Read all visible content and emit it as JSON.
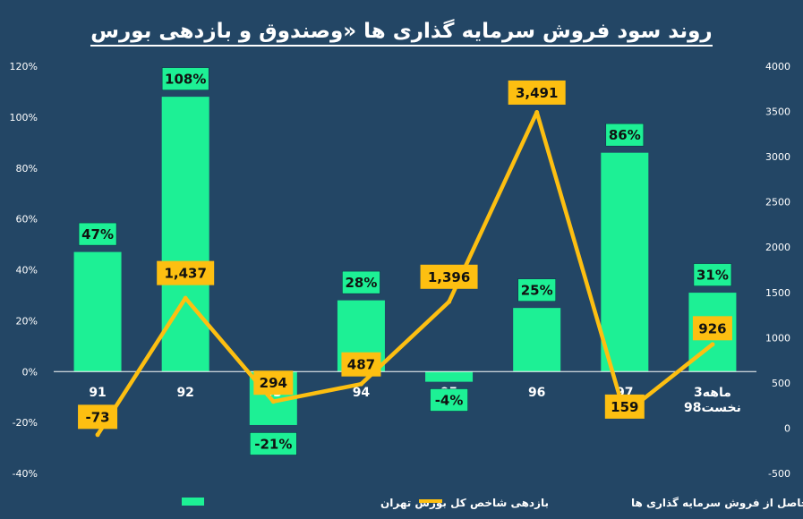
{
  "colors": {
    "background": "#234665",
    "bar": "#1DF095",
    "line": "#FDBF11",
    "text": "#FFFFFF"
  },
  "chart_data": {
    "type": "bar",
    "title": "روند سود فروش سرمایه گذاری ها «وصندوق و بازدهی بورس",
    "categories": [
      "91",
      "92",
      "93",
      "94",
      "95",
      "96",
      "97",
      "3ماهه نخست98"
    ],
    "category_lines": [
      [
        "91"
      ],
      [
        "92"
      ],
      [
        "93"
      ],
      [
        "94"
      ],
      [
        "95"
      ],
      [
        "96"
      ],
      [
        "97"
      ],
      [
        "3ماهه",
        "نخست98"
      ]
    ],
    "left_axis": {
      "ylim": [
        -40,
        120
      ],
      "ticks": [
        -40,
        -20,
        0,
        20,
        40,
        60,
        80,
        100,
        120
      ],
      "tick_labels": [
        "-40%",
        "-20%",
        "0%",
        "20%",
        "40%",
        "60%",
        "80%",
        "100%",
        "120%"
      ]
    },
    "right_axis": {
      "ylim": [
        -500,
        4000
      ],
      "ticks": [
        -500,
        0,
        500,
        1000,
        1500,
        2000,
        2500,
        3000,
        3500,
        4000
      ],
      "tick_labels": [
        "-500",
        "0",
        "500",
        "1000",
        "1500",
        "2000",
        "2500",
        "3000",
        "3500",
        "4000"
      ]
    },
    "series": [
      {
        "name": "بازدهی شاخص کل بورس تهران",
        "type": "bar",
        "axis": "left",
        "values": [
          47,
          108,
          -21,
          28,
          -4,
          25,
          86,
          31
        ],
        "labels": [
          "47%",
          "108%",
          "-21%",
          "28%",
          "-4%",
          "25%",
          "86%",
          "31%"
        ]
      },
      {
        "name": "سود حاصل از فروش سرمایه گذاری ها",
        "type": "line",
        "axis": "right",
        "values": [
          -73,
          1437,
          294,
          487,
          1396,
          3491,
          159,
          926
        ],
        "labels": [
          "-73",
          "1,437",
          "294",
          "487",
          "1,396",
          "3,491",
          "159",
          "926"
        ]
      }
    ]
  }
}
